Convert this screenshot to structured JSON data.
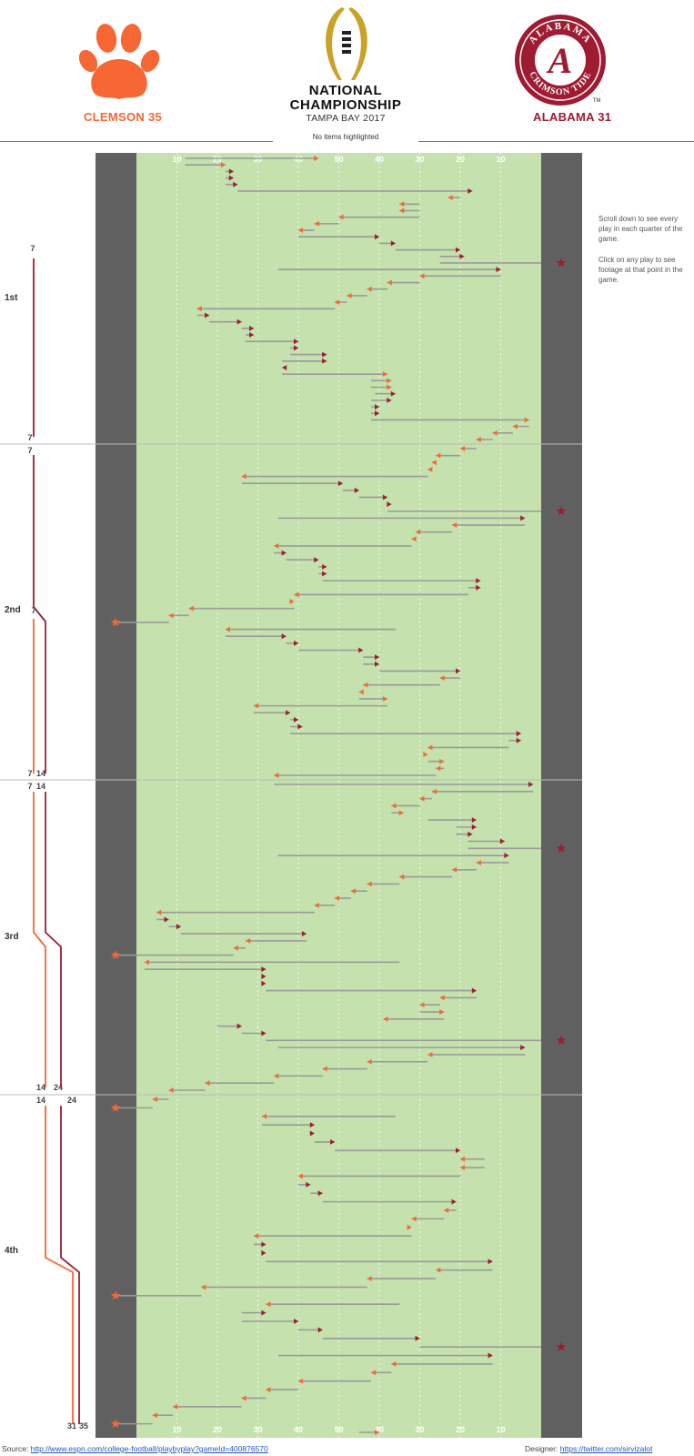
{
  "header": {
    "title_line1": "NATIONAL",
    "title_line2": "CHAMPIONSHIP",
    "subtitle": "TAMPA BAY 2017",
    "status": "No items highlighted",
    "home": {
      "name": "CLEMSON",
      "score": "35",
      "label": "CLEMSON 35",
      "color": "#F66733"
    },
    "away": {
      "name": "ALABAMA",
      "score": "31",
      "label": "ALABAMA 31",
      "color": "#9E1B32"
    },
    "alabama_logo_text": {
      "top": "ALABAMA",
      "bottom": "CRIMSON TIDE",
      "letter": "A",
      "tm": "TM"
    }
  },
  "side_note": {
    "line1": "Scroll down to see every play in each quarter of the game.",
    "line2": "Click on any play to see footage at that point in the game."
  },
  "footer": {
    "source_label": "Source:",
    "source_link": "http://www.espn.com/college-football/playbyplay?gameId=400876570",
    "designer_label": "Designer:",
    "designer_link": "https://twitter.com/sirvizalot"
  },
  "chart_data": {
    "type": "line",
    "title": "",
    "xlabel": "",
    "ylabel": "",
    "yard_labels_top": [
      "10",
      "20",
      "30",
      "40",
      "50",
      "40",
      "30",
      "20",
      "10"
    ],
    "yard_labels_bottom": [
      "10",
      "20",
      "30",
      "40",
      "50",
      "40",
      "30",
      "20",
      "10"
    ],
    "colors": {
      "clemson": "#F66733",
      "alabama": "#9E1B32",
      "field": "#C5E1AD",
      "endzone": "#606060",
      "play_line": "#9a9a9a"
    },
    "quarters": [
      {
        "label": "1st",
        "clemson_start": "",
        "clemson_end": "",
        "alabama_start": "7",
        "alabama_end": "7"
      },
      {
        "label": "2nd",
        "clemson_start": "7",
        "clemson_end": "7",
        "alabama_start": "7",
        "alabama_end": "14"
      },
      {
        "label": "3rd",
        "clemson_start": "7",
        "clemson_end": "14",
        "alabama_start": "14",
        "alabama_end": "24"
      },
      {
        "label": "4th",
        "clemson_start": "14",
        "clemson_end": "35",
        "alabama_start": "24",
        "alabama_end": "31"
      }
    ],
    "plays": [
      {
        "q": 1,
        "team": "C",
        "s": 12,
        "e": 45
      },
      {
        "q": 1,
        "team": "C",
        "s": 12,
        "e": 22
      },
      {
        "q": 1,
        "team": "A",
        "s": 22,
        "e": 24
      },
      {
        "q": 1,
        "team": "A",
        "s": 22,
        "e": 24
      },
      {
        "q": 1,
        "team": "A",
        "s": 22,
        "e": 25
      },
      {
        "q": 1,
        "team": "A",
        "s": 25,
        "e": 83
      },
      {
        "q": 1,
        "team": "C",
        "s": 80,
        "e": 77
      },
      {
        "q": 1,
        "team": "C",
        "s": 70,
        "e": 65
      },
      {
        "q": 1,
        "team": "C",
        "s": 70,
        "e": 65
      },
      {
        "q": 1,
        "team": "C",
        "s": 70,
        "e": 50
      },
      {
        "q": 1,
        "team": "C",
        "s": 50,
        "e": 44
      },
      {
        "q": 1,
        "team": "C",
        "s": 44,
        "e": 40
      },
      {
        "q": 1,
        "team": "A",
        "s": 40,
        "e": 60
      },
      {
        "q": 1,
        "team": "A",
        "s": 60,
        "e": 64
      },
      {
        "q": 1,
        "team": "A",
        "s": 64,
        "e": 80
      },
      {
        "q": 1,
        "team": "A",
        "s": 75,
        "e": 81
      },
      {
        "q": 1,
        "team": "A",
        "s": 75,
        "e": 100
      },
      {
        "q": 1,
        "team": "A",
        "s": 35,
        "e": 90
      },
      {
        "q": 1,
        "team": "C",
        "s": 90,
        "e": 70
      },
      {
        "q": 1,
        "team": "C",
        "s": 70,
        "e": 62
      },
      {
        "q": 1,
        "team": "C",
        "s": 62,
        "e": 57
      },
      {
        "q": 1,
        "team": "C",
        "s": 57,
        "e": 52
      },
      {
        "q": 1,
        "team": "C",
        "s": 52,
        "e": 49
      },
      {
        "q": 1,
        "team": "C",
        "s": 49,
        "e": 15
      },
      {
        "q": 1,
        "team": "A",
        "s": 15,
        "e": 18
      },
      {
        "q": 1,
        "team": "A",
        "s": 18,
        "e": 26
      },
      {
        "q": 1,
        "team": "A",
        "s": 26,
        "e": 29
      },
      {
        "q": 1,
        "team": "A",
        "s": 27,
        "e": 29
      },
      {
        "q": 1,
        "team": "A",
        "s": 27,
        "e": 40
      },
      {
        "q": 1,
        "team": "A",
        "s": 38,
        "e": 40
      },
      {
        "q": 1,
        "team": "A",
        "s": 38,
        "e": 47
      },
      {
        "q": 1,
        "team": "A",
        "s": 36,
        "e": 47
      },
      {
        "q": 1,
        "team": "A",
        "s": 37,
        "e": 36
      },
      {
        "q": 1,
        "team": "C",
        "s": 36,
        "e": 62
      },
      {
        "q": 1,
        "team": "C",
        "s": 58,
        "e": 63
      },
      {
        "q": 1,
        "team": "C",
        "s": 58,
        "e": 63
      },
      {
        "q": 1,
        "team": "A",
        "s": 59,
        "e": 64
      },
      {
        "q": 1,
        "team": "A",
        "s": 58,
        "e": 63
      },
      {
        "q": 1,
        "team": "A",
        "s": 58,
        "e": 60
      },
      {
        "q": 1,
        "team": "A",
        "s": 58,
        "e": 60
      },
      {
        "q": 1,
        "team": "C",
        "s": 58,
        "e": 97
      },
      {
        "q": 1,
        "team": "C",
        "s": 97,
        "e": 93
      },
      {
        "q": 1,
        "team": "C",
        "s": 93,
        "e": 88
      },
      {
        "q": 1,
        "team": "C",
        "s": 88,
        "e": 84
      },
      {
        "q": 2,
        "team": "C",
        "s": 84,
        "e": 80
      },
      {
        "q": 2,
        "team": "C",
        "s": 80,
        "e": 74
      },
      {
        "q": 2,
        "team": "C",
        "s": 74,
        "e": 73
      },
      {
        "q": 2,
        "team": "C",
        "s": 73,
        "e": 72
      },
      {
        "q": 2,
        "team": "C",
        "s": 72,
        "e": 26
      },
      {
        "q": 2,
        "team": "A",
        "s": 26,
        "e": 51
      },
      {
        "q": 2,
        "team": "A",
        "s": 51,
        "e": 55
      },
      {
        "q": 2,
        "team": "A",
        "s": 55,
        "e": 62
      },
      {
        "q": 2,
        "team": "A",
        "s": 62,
        "e": 63
      },
      {
        "q": 2,
        "team": "A",
        "s": 62,
        "e": 100
      },
      {
        "q": 2,
        "team": "A",
        "s": 35,
        "e": 96
      },
      {
        "q": 2,
        "team": "C",
        "s": 96,
        "e": 78
      },
      {
        "q": 2,
        "team": "C",
        "s": 78,
        "e": 69
      },
      {
        "q": 2,
        "team": "C",
        "s": 69,
        "e": 68
      },
      {
        "q": 2,
        "team": "C",
        "s": 68,
        "e": 34
      },
      {
        "q": 2,
        "team": "A",
        "s": 34,
        "e": 37
      },
      {
        "q": 2,
        "team": "A",
        "s": 37,
        "e": 45
      },
      {
        "q": 2,
        "team": "A",
        "s": 45,
        "e": 47
      },
      {
        "q": 2,
        "team": "A",
        "s": 45,
        "e": 47
      },
      {
        "q": 2,
        "team": "A",
        "s": 46,
        "e": 85
      },
      {
        "q": 2,
        "team": "A",
        "s": 82,
        "e": 85
      },
      {
        "q": 2,
        "team": "C",
        "s": 82,
        "e": 39
      },
      {
        "q": 2,
        "team": "C",
        "s": 39,
        "e": 39
      },
      {
        "q": 2,
        "team": "C",
        "s": 39,
        "e": 13
      },
      {
        "q": 2,
        "team": "C",
        "s": 13,
        "e": 8
      },
      {
        "q": 2,
        "team": "C",
        "s": 8,
        "e": -5
      },
      {
        "q": 2,
        "team": "C",
        "s": 64,
        "e": 22
      },
      {
        "q": 2,
        "team": "A",
        "s": 22,
        "e": 37
      },
      {
        "q": 2,
        "team": "A",
        "s": 37,
        "e": 40
      },
      {
        "q": 2,
        "team": "A",
        "s": 40,
        "e": 56
      },
      {
        "q": 2,
        "team": "A",
        "s": 56,
        "e": 60
      },
      {
        "q": 2,
        "team": "A",
        "s": 56,
        "e": 60
      },
      {
        "q": 2,
        "team": "A",
        "s": 60,
        "e": 80
      },
      {
        "q": 2,
        "team": "C",
        "s": 80,
        "e": 75
      },
      {
        "q": 2,
        "team": "C",
        "s": 75,
        "e": 56
      },
      {
        "q": 2,
        "team": "C",
        "s": 56,
        "e": 55
      },
      {
        "q": 2,
        "team": "C",
        "s": 55,
        "e": 62
      },
      {
        "q": 2,
        "team": "C",
        "s": 62,
        "e": 29
      },
      {
        "q": 2,
        "team": "A",
        "s": 29,
        "e": 38
      },
      {
        "q": 2,
        "team": "A",
        "s": 38,
        "e": 40
      },
      {
        "q": 2,
        "team": "A",
        "s": 38,
        "e": 41
      },
      {
        "q": 2,
        "team": "A",
        "s": 38,
        "e": 95
      },
      {
        "q": 2,
        "team": "A",
        "s": 92,
        "e": 95
      },
      {
        "q": 2,
        "team": "C",
        "s": 92,
        "e": 72
      },
      {
        "q": 2,
        "team": "C",
        "s": 72,
        "e": 72
      },
      {
        "q": 2,
        "team": "C",
        "s": 72,
        "e": 76
      },
      {
        "q": 2,
        "team": "C",
        "s": 76,
        "e": 74
      },
      {
        "q": 2,
        "team": "C",
        "s": 74,
        "e": 34
      },
      {
        "q": 3,
        "team": "A",
        "s": 34,
        "e": 98
      },
      {
        "q": 3,
        "team": "C",
        "s": 98,
        "e": 73
      },
      {
        "q": 3,
        "team": "C",
        "s": 73,
        "e": 70
      },
      {
        "q": 3,
        "team": "C",
        "s": 70,
        "e": 63
      },
      {
        "q": 3,
        "team": "C",
        "s": 63,
        "e": 66
      },
      {
        "q": 3,
        "team": "A",
        "s": 72,
        "e": 84
      },
      {
        "q": 3,
        "team": "A",
        "s": 79,
        "e": 84
      },
      {
        "q": 3,
        "team": "A",
        "s": 79,
        "e": 83
      },
      {
        "q": 3,
        "team": "A",
        "s": 82,
        "e": 91
      },
      {
        "q": 3,
        "team": "A",
        "s": 82,
        "e": 100
      },
      {
        "q": 3,
        "team": "A",
        "s": 35,
        "e": 92
      },
      {
        "q": 3,
        "team": "C",
        "s": 92,
        "e": 84
      },
      {
        "q": 3,
        "team": "C",
        "s": 84,
        "e": 78
      },
      {
        "q": 3,
        "team": "C",
        "s": 78,
        "e": 65
      },
      {
        "q": 3,
        "team": "C",
        "s": 65,
        "e": 57
      },
      {
        "q": 3,
        "team": "C",
        "s": 57,
        "e": 53
      },
      {
        "q": 3,
        "team": "C",
        "s": 53,
        "e": 49
      },
      {
        "q": 3,
        "team": "C",
        "s": 49,
        "e": 44
      },
      {
        "q": 3,
        "team": "C",
        "s": 44,
        "e": 5
      },
      {
        "q": 3,
        "team": "A",
        "s": 5,
        "e": 8
      },
      {
        "q": 3,
        "team": "A",
        "s": 8,
        "e": 11
      },
      {
        "q": 3,
        "team": "A",
        "s": 11,
        "e": 42
      },
      {
        "q": 3,
        "team": "C",
        "s": 42,
        "e": 27
      },
      {
        "q": 3,
        "team": "C",
        "s": 27,
        "e": 24
      },
      {
        "q": 3,
        "team": "C",
        "s": 24,
        "e": -5
      },
      {
        "q": 3,
        "team": "C",
        "s": 65,
        "e": 2
      },
      {
        "q": 3,
        "team": "A",
        "s": 2,
        "e": 32
      },
      {
        "q": 3,
        "team": "A",
        "s": 32,
        "e": 32
      },
      {
        "q": 3,
        "team": "A",
        "s": 32,
        "e": 32
      },
      {
        "q": 3,
        "team": "A",
        "s": 32,
        "e": 84
      },
      {
        "q": 3,
        "team": "C",
        "s": 84,
        "e": 75
      },
      {
        "q": 3,
        "team": "C",
        "s": 75,
        "e": 70
      },
      {
        "q": 3,
        "team": "C",
        "s": 70,
        "e": 76
      },
      {
        "q": 3,
        "team": "C",
        "s": 76,
        "e": 61
      },
      {
        "q": 3,
        "team": "A",
        "s": 20,
        "e": 26
      },
      {
        "q": 3,
        "team": "A",
        "s": 26,
        "e": 32
      },
      {
        "q": 3,
        "team": "A",
        "s": 32,
        "e": 100
      },
      {
        "q": 3,
        "team": "A",
        "s": 35,
        "e": 96
      },
      {
        "q": 3,
        "team": "C",
        "s": 96,
        "e": 72
      },
      {
        "q": 3,
        "team": "C",
        "s": 72,
        "e": 57
      },
      {
        "q": 3,
        "team": "C",
        "s": 57,
        "e": 46
      },
      {
        "q": 3,
        "team": "C",
        "s": 46,
        "e": 34
      },
      {
        "q": 3,
        "team": "C",
        "s": 34,
        "e": 17
      },
      {
        "q": 3,
        "team": "C",
        "s": 17,
        "e": 8
      },
      {
        "q": 4,
        "team": "C",
        "s": 8,
        "e": 4
      },
      {
        "q": 4,
        "team": "C",
        "s": 4,
        "e": -5
      },
      {
        "q": 4,
        "team": "C",
        "s": 64,
        "e": 31
      },
      {
        "q": 4,
        "team": "A",
        "s": 31,
        "e": 44
      },
      {
        "q": 4,
        "team": "A",
        "s": 44,
        "e": 44
      },
      {
        "q": 4,
        "team": "A",
        "s": 44,
        "e": 49
      },
      {
        "q": 4,
        "team": "A",
        "s": 49,
        "e": 80
      },
      {
        "q": 4,
        "team": "C",
        "s": 86,
        "e": 80
      },
      {
        "q": 4,
        "team": "C",
        "s": 86,
        "e": 80
      },
      {
        "q": 4,
        "team": "C",
        "s": 80,
        "e": 40
      },
      {
        "q": 4,
        "team": "A",
        "s": 40,
        "e": 43
      },
      {
        "q": 4,
        "team": "A",
        "s": 43,
        "e": 46
      },
      {
        "q": 4,
        "team": "A",
        "s": 46,
        "e": 79
      },
      {
        "q": 4,
        "team": "C",
        "s": 79,
        "e": 76
      },
      {
        "q": 4,
        "team": "C",
        "s": 76,
        "e": 68
      },
      {
        "q": 4,
        "team": "C",
        "s": 68,
        "e": 68
      },
      {
        "q": 4,
        "team": "C",
        "s": 68,
        "e": 29
      },
      {
        "q": 4,
        "team": "A",
        "s": 29,
        "e": 32
      },
      {
        "q": 4,
        "team": "A",
        "s": 32,
        "e": 32
      },
      {
        "q": 4,
        "team": "A",
        "s": 32,
        "e": 88
      },
      {
        "q": 4,
        "team": "C",
        "s": 88,
        "e": 74
      },
      {
        "q": 4,
        "team": "C",
        "s": 74,
        "e": 57
      },
      {
        "q": 4,
        "team": "C",
        "s": 57,
        "e": 16
      },
      {
        "q": 4,
        "team": "C",
        "s": 16,
        "e": -5
      },
      {
        "q": 4,
        "team": "C",
        "s": 65,
        "e": 32
      },
      {
        "q": 4,
        "team": "A",
        "s": 26,
        "e": 32
      },
      {
        "q": 4,
        "team": "A",
        "s": 26,
        "e": 40
      },
      {
        "q": 4,
        "team": "A",
        "s": 40,
        "e": 46
      },
      {
        "q": 4,
        "team": "A",
        "s": 46,
        "e": 70
      },
      {
        "q": 4,
        "team": "A",
        "s": 70,
        "e": 100
      },
      {
        "q": 4,
        "team": "A",
        "s": 35,
        "e": 88
      },
      {
        "q": 4,
        "team": "C",
        "s": 88,
        "e": 63
      },
      {
        "q": 4,
        "team": "C",
        "s": 63,
        "e": 58
      },
      {
        "q": 4,
        "team": "C",
        "s": 58,
        "e": 40
      },
      {
        "q": 4,
        "team": "C",
        "s": 40,
        "e": 32
      },
      {
        "q": 4,
        "team": "C",
        "s": 32,
        "e": 26
      },
      {
        "q": 4,
        "team": "C",
        "s": 26,
        "e": 9
      },
      {
        "q": 4,
        "team": "C",
        "s": 9,
        "e": 4
      },
      {
        "q": 4,
        "team": "C",
        "s": 4,
        "e": -5
      },
      {
        "q": 4,
        "team": "C",
        "s": 55,
        "e": 60
      }
    ]
  }
}
